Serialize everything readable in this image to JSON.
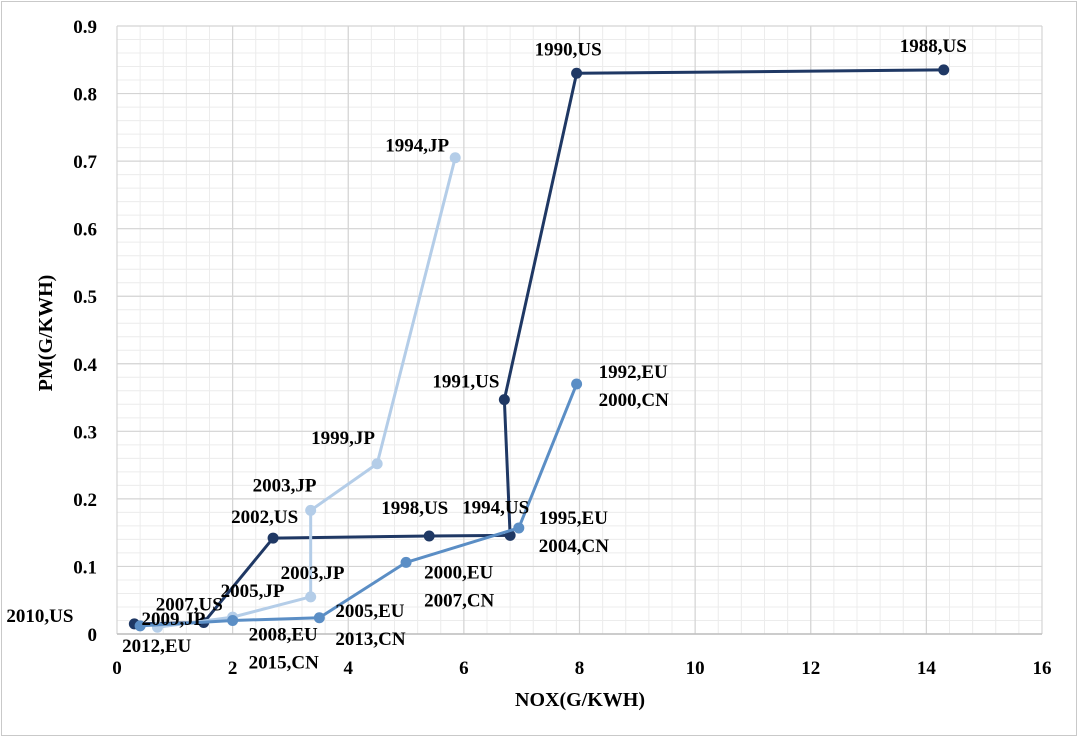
{
  "chart_data": {
    "type": "scatter",
    "xlabel": "NOX(G/KWH)",
    "ylabel": "PM(G/KWH)",
    "xlim": [
      0,
      16
    ],
    "ylim": [
      0,
      0.9
    ],
    "xticks": [
      0,
      2,
      4,
      6,
      8,
      10,
      12,
      14,
      16
    ],
    "yticks": [
      0,
      0.1,
      0.2,
      0.3,
      0.4,
      0.5,
      0.6,
      0.7,
      0.8,
      0.9
    ],
    "xtick_labels": [
      "0",
      "2",
      "4",
      "6",
      "8",
      "10",
      "12",
      "14",
      "16"
    ],
    "ytick_labels": [
      "0",
      "0.1",
      "0.2",
      "0.3",
      "0.4",
      "0.5",
      "0.6",
      "0.7",
      "0.8",
      "0.9"
    ],
    "grid": true,
    "minor_grid": true,
    "legend": "none",
    "series": [
      {
        "color": "#1f3864",
        "points": [
          {
            "x": 14.3,
            "y": 0.835,
            "label": "1988,US"
          },
          {
            "x": 7.95,
            "y": 0.83,
            "label": "1990,US"
          },
          {
            "x": 6.7,
            "y": 0.347,
            "label": "1991,US"
          },
          {
            "x": 6.8,
            "y": 0.146,
            "label": "1994,US"
          },
          {
            "x": 5.4,
            "y": 0.145,
            "label": "1998,US"
          },
          {
            "x": 2.7,
            "y": 0.142,
            "label": "2002,US"
          },
          {
            "x": 1.5,
            "y": 0.017,
            "label": "2007,US"
          },
          {
            "x": 0.3,
            "y": 0.015,
            "label": "2010,US"
          }
        ]
      },
      {
        "color": "#b4cde8",
        "points": [
          {
            "x": 5.85,
            "y": 0.705,
            "label": "1994,JP"
          },
          {
            "x": 4.5,
            "y": 0.252,
            "label": "1999,JP"
          },
          {
            "x": 3.35,
            "y": 0.183,
            "label": "2003,JP"
          },
          {
            "x": 3.35,
            "y": 0.055,
            "label": "2003,JP"
          },
          {
            "x": 2.0,
            "y": 0.025,
            "label": "2005,JP"
          },
          {
            "x": 0.7,
            "y": 0.01,
            "label": "2009,JP"
          }
        ]
      },
      {
        "color": "#5b8ec5",
        "points": [
          {
            "x": 7.95,
            "y": 0.37,
            "label": "1992,EU\n2000,CN"
          },
          {
            "x": 6.95,
            "y": 0.157,
            "label": "1995,EU\n2004,CN"
          },
          {
            "x": 5.0,
            "y": 0.106,
            "label": "2000,EU\n2007,CN"
          },
          {
            "x": 3.5,
            "y": 0.024,
            "label": "2005,EU\n2013,CN"
          },
          {
            "x": 2.0,
            "y": 0.02,
            "label": "2008,EU\n2015,CN"
          },
          {
            "x": 0.4,
            "y": 0.012,
            "label": "2012,EU"
          }
        ]
      }
    ]
  }
}
